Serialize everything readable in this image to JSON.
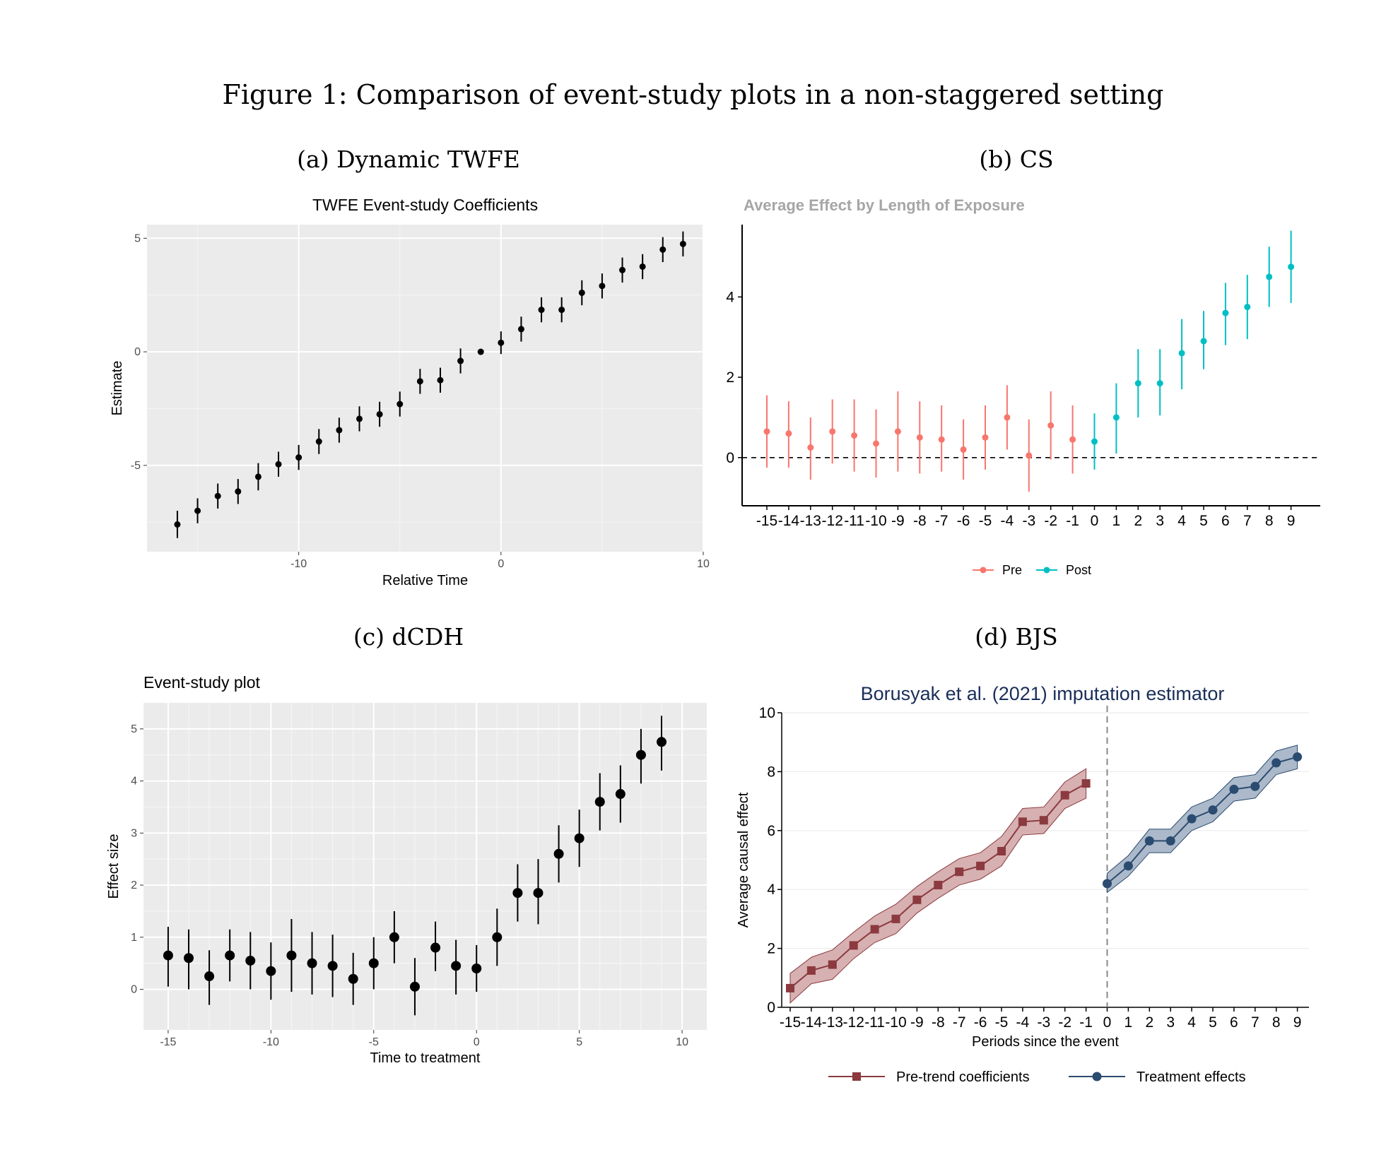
{
  "figure": {
    "title": "Figure 1: Comparison of event-study plots in a non-staggered setting",
    "captions": [
      "(a) Dynamic TWFE",
      "(b) CS",
      "(c) dCDH",
      "(d) BJS"
    ]
  },
  "chart_data": [
    {
      "id": "a",
      "type": "scatter",
      "title": "TWFE Event-study Coefficients",
      "xlabel": "Relative Time",
      "ylabel": "Estimate",
      "xlim": [
        -17.5,
        10
      ],
      "ylim": [
        -8.8,
        5.6
      ],
      "xticks": [
        -10,
        0,
        10
      ],
      "yticks": [
        -5,
        0,
        5
      ],
      "grid": true,
      "x": [
        -16,
        -15,
        -14,
        -13,
        -12,
        -11,
        -10,
        -9,
        -8,
        -7,
        -6,
        -5,
        -4,
        -3,
        -2,
        -1,
        0,
        1,
        2,
        3,
        4,
        5,
        6,
        7,
        8,
        9
      ],
      "y": [
        -7.6,
        -7.0,
        -6.35,
        -6.15,
        -5.5,
        -4.95,
        -4.65,
        -3.95,
        -3.45,
        -2.95,
        -2.75,
        -2.3,
        -1.3,
        -1.25,
        -0.4,
        0.0,
        0.4,
        1.0,
        1.85,
        1.85,
        2.6,
        2.9,
        3.6,
        3.75,
        4.5,
        4.75
      ],
      "ci_low": [
        -8.2,
        -7.55,
        -6.9,
        -6.7,
        -6.1,
        -5.5,
        -5.2,
        -4.5,
        -4.0,
        -3.5,
        -3.3,
        -2.85,
        -1.85,
        -1.8,
        -0.95,
        0.0,
        -0.1,
        0.45,
        1.3,
        1.3,
        2.05,
        2.35,
        3.05,
        3.2,
        3.95,
        4.2
      ],
      "ci_high": [
        -7.0,
        -6.45,
        -5.8,
        -5.6,
        -4.9,
        -4.4,
        -4.1,
        -3.4,
        -2.9,
        -2.4,
        -2.2,
        -1.75,
        -0.75,
        -0.7,
        0.15,
        0.0,
        0.9,
        1.55,
        2.4,
        2.4,
        3.15,
        3.45,
        4.15,
        4.3,
        5.05,
        5.3
      ]
    },
    {
      "id": "b",
      "type": "scatter",
      "title": "Average Effect by Length of Exposure",
      "xlabel": "",
      "ylabel": "",
      "ylim": [
        -1.2,
        5.8
      ],
      "yticks": [
        0,
        2,
        4
      ],
      "categories": [
        "-15",
        "-14",
        "-13",
        "-12",
        "-11",
        "-10",
        "-9",
        "-8",
        "-7",
        "-6",
        "-5",
        "-4",
        "-3",
        "-2",
        "-1",
        "0",
        "1",
        "2",
        "3",
        "4",
        "5",
        "6",
        "7",
        "8",
        "9"
      ],
      "legend": {
        "position": "bottom",
        "entries": [
          "Pre",
          "Post"
        ]
      },
      "colors": {
        "pre": "#F8766D",
        "post": "#00BFC4"
      },
      "reference_line": 0,
      "series": [
        {
          "name": "Pre",
          "x": [
            "-15",
            "-14",
            "-13",
            "-12",
            "-11",
            "-10",
            "-9",
            "-8",
            "-7",
            "-6",
            "-5",
            "-4",
            "-3",
            "-2",
            "-1"
          ],
          "y": [
            0.65,
            0.6,
            0.25,
            0.65,
            0.55,
            0.35,
            0.65,
            0.5,
            0.45,
            0.2,
            0.5,
            1.0,
            0.05,
            0.8,
            0.45
          ],
          "ci_low": [
            -0.25,
            -0.25,
            -0.55,
            -0.15,
            -0.35,
            -0.5,
            -0.35,
            -0.4,
            -0.35,
            -0.55,
            -0.3,
            0.2,
            -0.85,
            -0.05,
            -0.4
          ],
          "ci_high": [
            1.55,
            1.4,
            1.0,
            1.45,
            1.45,
            1.2,
            1.65,
            1.4,
            1.3,
            0.95,
            1.3,
            1.8,
            0.95,
            1.65,
            1.3
          ]
        },
        {
          "name": "Post",
          "x": [
            "0",
            "1",
            "2",
            "3",
            "4",
            "5",
            "6",
            "7",
            "8",
            "9"
          ],
          "y": [
            0.4,
            1.0,
            1.85,
            1.85,
            2.6,
            2.9,
            3.6,
            3.75,
            4.5,
            4.75
          ],
          "ci_low": [
            -0.3,
            0.1,
            1.0,
            1.05,
            1.7,
            2.2,
            2.8,
            2.95,
            3.75,
            3.85
          ],
          "ci_high": [
            1.1,
            1.85,
            2.7,
            2.7,
            3.45,
            3.65,
            4.35,
            4.55,
            5.25,
            5.65
          ]
        }
      ]
    },
    {
      "id": "c",
      "type": "scatter",
      "title": "Event-study plot",
      "xlabel": "Time to treatment",
      "ylabel": "Effect size",
      "xlim": [
        -16.2,
        11.2
      ],
      "ylim": [
        -0.78,
        5.5
      ],
      "xticks": [
        -15,
        -10,
        -5,
        0,
        5,
        10
      ],
      "yticks": [
        0,
        1,
        2,
        3,
        4,
        5
      ],
      "grid": true,
      "x": [
        -15,
        -14,
        -13,
        -12,
        -11,
        -10,
        -9,
        -8,
        -7,
        -6,
        -5,
        -4,
        -3,
        -2,
        -1,
        0,
        1,
        2,
        3,
        4,
        5,
        6,
        7,
        8,
        9
      ],
      "y": [
        0.65,
        0.6,
        0.25,
        0.65,
        0.55,
        0.35,
        0.65,
        0.5,
        0.45,
        0.2,
        0.5,
        1.0,
        0.05,
        0.8,
        0.45,
        0.4,
        1.0,
        1.85,
        1.85,
        2.6,
        2.9,
        3.6,
        3.75,
        4.5,
        4.75
      ],
      "ci_low": [
        0.05,
        0.0,
        -0.3,
        0.15,
        0.0,
        -0.2,
        -0.05,
        -0.1,
        -0.15,
        -0.3,
        0.0,
        0.5,
        -0.5,
        0.35,
        -0.1,
        -0.05,
        0.45,
        1.3,
        1.25,
        2.05,
        2.35,
        3.05,
        3.2,
        3.95,
        4.2
      ],
      "ci_high": [
        1.2,
        1.15,
        0.75,
        1.15,
        1.1,
        0.9,
        1.35,
        1.1,
        1.05,
        0.7,
        1.0,
        1.5,
        0.6,
        1.3,
        0.95,
        0.85,
        1.55,
        2.4,
        2.5,
        3.15,
        3.45,
        4.15,
        4.3,
        5.0,
        5.25
      ]
    },
    {
      "id": "d",
      "type": "line",
      "title": "Borusyak et al. (2021) imputation estimator",
      "xlabel": "Periods since the event",
      "ylabel": "Average causal effect",
      "ylim": [
        0,
        10
      ],
      "yticks": [
        0,
        2,
        4,
        6,
        8,
        10
      ],
      "xticks": [
        "-15",
        "-14",
        "-13",
        "-12",
        "-11",
        "-10",
        "-9",
        "-8",
        "-7",
        "-6",
        "-5",
        "-4",
        "-3",
        "-2",
        "-1",
        "0",
        "1",
        "2",
        "3",
        "4",
        "5",
        "6",
        "7",
        "8",
        "9"
      ],
      "reference_line_x": 0,
      "legend": {
        "position": "bottom",
        "entries": [
          "Pre-trend coefficients",
          "Treatment effects"
        ]
      },
      "colors": {
        "pre": "#8B3A3F",
        "post": "#2B4B70",
        "pre_band": "#C99597",
        "post_band": "#8FA2B8"
      },
      "series": [
        {
          "name": "Pre-trend coefficients",
          "x": [
            -15,
            -14,
            -13,
            -12,
            -11,
            -10,
            -9,
            -8,
            -7,
            -6,
            -5,
            -4,
            -3,
            -2,
            -1
          ],
          "y": [
            0.65,
            1.25,
            1.45,
            2.1,
            2.65,
            3.0,
            3.65,
            4.15,
            4.6,
            4.8,
            5.3,
            6.3,
            6.35,
            7.2,
            7.6
          ],
          "ci_low": [
            0.15,
            0.8,
            0.95,
            1.65,
            2.2,
            2.5,
            3.2,
            3.7,
            4.15,
            4.35,
            4.8,
            5.85,
            5.9,
            6.75,
            7.1
          ],
          "ci_high": [
            1.15,
            1.7,
            1.95,
            2.55,
            3.1,
            3.5,
            4.1,
            4.6,
            5.05,
            5.25,
            5.8,
            6.75,
            6.8,
            7.65,
            8.1
          ]
        },
        {
          "name": "Treatment effects",
          "x": [
            0,
            1,
            2,
            3,
            4,
            5,
            6,
            7,
            8,
            9
          ],
          "y": [
            4.2,
            4.8,
            5.65,
            5.65,
            6.4,
            6.7,
            7.4,
            7.5,
            8.3,
            8.5
          ],
          "ci_low": [
            3.9,
            4.45,
            5.25,
            5.25,
            6.0,
            6.3,
            7.0,
            7.1,
            7.9,
            8.1
          ],
          "ci_high": [
            4.55,
            5.15,
            6.05,
            6.05,
            6.8,
            7.1,
            7.8,
            7.9,
            8.7,
            8.9
          ]
        }
      ]
    }
  ]
}
